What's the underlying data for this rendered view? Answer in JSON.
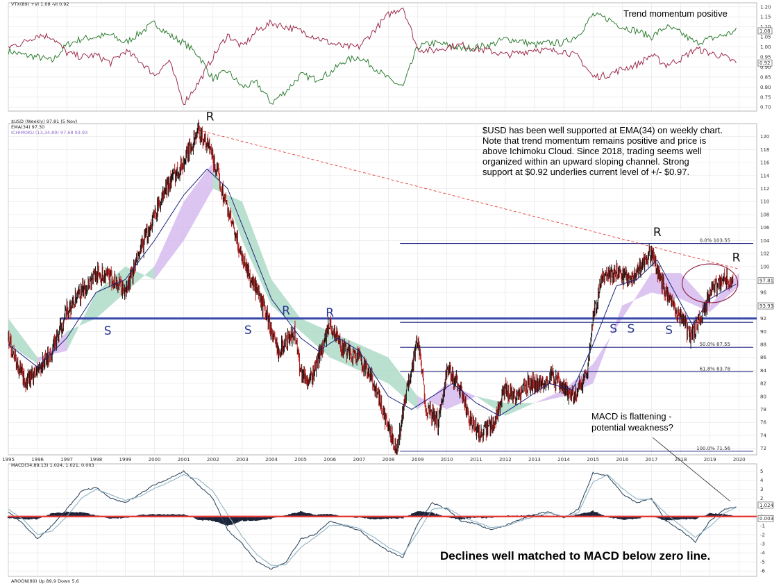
{
  "chart_data": [
    {
      "type": "line",
      "panel": "vortex",
      "legend": "VTX(89) +VI 1.08 -VI 0.92",
      "annotation": "Trend momentum positive",
      "ylim": [
        0.68,
        1.22
      ],
      "yticks": [
        "1.20",
        "1.15",
        "1.10",
        "1.05",
        "1.00",
        "0.95",
        "0.90",
        "0.85",
        "0.80",
        "0.75",
        "0.70"
      ],
      "last_labels": [
        "1.08",
        "0.92"
      ],
      "series": [
        {
          "name": "+VI",
          "color": "#2e7d32",
          "x": [
            1995.0,
            1995.5,
            1996.0,
            1996.5,
            1997.0,
            1997.5,
            1998.0,
            1998.5,
            1999.0,
            1999.5,
            2000.0,
            2000.5,
            2001.0,
            2001.5,
            2002.0,
            2002.5,
            2003.0,
            2003.5,
            2004.0,
            2004.5,
            2005.0,
            2005.5,
            2006.0,
            2006.5,
            2007.0,
            2007.5,
            2008.0,
            2008.5,
            2009.0,
            2009.5,
            2010.0,
            2010.5,
            2011.0,
            2011.5,
            2012.0,
            2012.5,
            2013.0,
            2013.5,
            2014.0,
            2014.5,
            2015.0,
            2015.5,
            2016.0,
            2016.5,
            2017.0,
            2017.5,
            2018.0,
            2018.5,
            2019.0,
            2019.5,
            2019.9
          ],
          "y": [
            0.98,
            0.96,
            0.95,
            0.93,
            1.01,
            1.04,
            1.05,
            1.06,
            1.02,
            1.07,
            1.12,
            1.06,
            1.02,
            0.96,
            0.84,
            0.88,
            0.8,
            0.82,
            0.72,
            0.78,
            0.86,
            0.84,
            0.87,
            0.93,
            0.95,
            0.9,
            0.84,
            0.8,
            1.0,
            1.02,
            1.01,
            0.99,
            1.0,
            1.01,
            1.04,
            1.03,
            1.01,
            1.02,
            1.02,
            1.06,
            1.16,
            1.14,
            1.1,
            1.08,
            1.05,
            1.1,
            1.07,
            1.02,
            1.04,
            1.06,
            1.08
          ]
        },
        {
          "name": "-VI",
          "color": "#9c2a4a",
          "x": [
            1995.0,
            1995.5,
            1996.0,
            1996.5,
            1997.0,
            1997.5,
            1998.0,
            1998.5,
            1999.0,
            1999.5,
            2000.0,
            2000.5,
            2001.0,
            2001.5,
            2002.0,
            2002.5,
            2003.0,
            2003.5,
            2004.0,
            2004.5,
            2005.0,
            2005.5,
            2006.0,
            2006.5,
            2007.0,
            2007.5,
            2008.0,
            2008.5,
            2009.0,
            2009.5,
            2010.0,
            2010.5,
            2011.0,
            2011.5,
            2012.0,
            2012.5,
            2013.0,
            2013.5,
            2014.0,
            2014.5,
            2015.0,
            2015.5,
            2016.0,
            2016.5,
            2017.0,
            2017.5,
            2018.0,
            2018.5,
            2019.0,
            2019.5,
            2019.9
          ],
          "y": [
            1.0,
            1.02,
            1.06,
            1.05,
            0.97,
            0.95,
            0.96,
            0.92,
            0.98,
            0.93,
            0.86,
            0.93,
            0.72,
            0.82,
            0.95,
            1.06,
            1.0,
            1.08,
            1.12,
            1.1,
            1.08,
            1.05,
            1.02,
            1.0,
            1.0,
            1.08,
            1.16,
            1.2,
            0.99,
            0.98,
            1.0,
            1.01,
            0.99,
            0.98,
            0.96,
            0.97,
            0.99,
            0.98,
            0.98,
            0.95,
            0.85,
            0.86,
            0.89,
            0.91,
            0.96,
            0.91,
            0.94,
            0.99,
            0.97,
            0.95,
            0.92
          ]
        }
      ]
    },
    {
      "type": "candlestick",
      "panel": "price",
      "legend": [
        "$USD (Weekly) 97.81 (5 Nov)",
        "EMA(34) 97.30",
        "ICHIMOKU (13,34,89) 97.68 93.93"
      ],
      "ylim": [
        71,
        122
      ],
      "yticks": [
        "120",
        "118",
        "116",
        "114",
        "112",
        "110",
        "108",
        "106",
        "104",
        "102",
        "100",
        "98",
        "96",
        "94",
        "92",
        "90",
        "88",
        "86",
        "84",
        "82",
        "80",
        "78",
        "76",
        "74",
        "72"
      ],
      "xticks": [
        "1995",
        "1996",
        "1997",
        "1998",
        "1999",
        "2000",
        "2001",
        "2002",
        "2003",
        "2004",
        "2005",
        "2006",
        "2007",
        "2008",
        "2009",
        "2010",
        "2011",
        "2012",
        "2013",
        "2014",
        "2015",
        "2016",
        "2017",
        "2018",
        "2019",
        "2020"
      ],
      "last_labels": [
        "97.81",
        "93.93"
      ],
      "price_path": {
        "x": [
          1995.0,
          1995.3,
          1995.6,
          1996.0,
          1996.5,
          1997.0,
          1997.5,
          1998.0,
          1998.6,
          1999.0,
          1999.5,
          2000.0,
          2000.5,
          2001.0,
          2001.5,
          2001.9,
          2002.3,
          2002.8,
          2003.3,
          2003.8,
          2004.2,
          2004.8,
          2005.0,
          2005.3,
          2005.7,
          2006.0,
          2006.5,
          2007.0,
          2007.5,
          2008.0,
          2008.3,
          2008.6,
          2009.0,
          2009.3,
          2009.7,
          2010.0,
          2010.4,
          2010.8,
          2011.2,
          2011.6,
          2012.0,
          2012.4,
          2012.8,
          2013.2,
          2013.6,
          2014.0,
          2014.4,
          2014.8,
          2015.0,
          2015.3,
          2015.8,
          2016.3,
          2016.8,
          2017.0,
          2017.4,
          2017.8,
          2018.1,
          2018.3,
          2018.7,
          2019.0,
          2019.4,
          2019.8
        ],
        "y": [
          89,
          85,
          82,
          84,
          87,
          93,
          96,
          99,
          98,
          96,
          102,
          108,
          113,
          116,
          121,
          118,
          112,
          104,
          98,
          93,
          87,
          90,
          84,
          82,
          87,
          91,
          87,
          86,
          82,
          75,
          72,
          80,
          89,
          78,
          76,
          84,
          82,
          76,
          74,
          76,
          81,
          80,
          82,
          82,
          83,
          81,
          80,
          84,
          92,
          98,
          99,
          98,
          101,
          102,
          97,
          93,
          92,
          89,
          92,
          96,
          98,
          97.8
        ]
      },
      "ema34": {
        "x": [
          1995.0,
          1996.0,
          1997.0,
          1998.0,
          1999.0,
          2000.0,
          2001.0,
          2001.8,
          2002.5,
          2003.3,
          2004.0,
          2005.0,
          2005.6,
          2006.3,
          2007.0,
          2008.0,
          2008.8,
          2009.5,
          2010.2,
          2011.0,
          2011.8,
          2012.5,
          2013.5,
          2014.3,
          2015.0,
          2015.8,
          2016.5,
          2017.2,
          2017.8,
          2018.4,
          2019.0,
          2019.9
        ],
        "y": [
          88,
          84.5,
          89,
          96,
          98,
          104,
          111,
          115,
          112,
          103,
          95,
          89,
          87,
          89,
          87,
          80,
          78,
          80,
          82,
          79,
          77,
          79,
          82,
          81,
          88,
          97,
          98,
          101,
          96,
          91,
          95,
          97.3
        ]
      },
      "cloud_a": {
        "x": [
          1995,
          1996,
          1997,
          1998,
          1999,
          2000,
          2001,
          2002,
          2003,
          2004,
          2005,
          2006,
          2007,
          2008,
          2009,
          2010,
          2011,
          2012,
          2013,
          2014,
          2015,
          2016,
          2017,
          2018,
          2019,
          2020
        ],
        "y": [
          92,
          86,
          87,
          96,
          100,
          98,
          104,
          112,
          110,
          98,
          92,
          90,
          88,
          86,
          80,
          78,
          80,
          79,
          79,
          80,
          82,
          94,
          96,
          95,
          93,
          97
        ]
      },
      "cloud_b": {
        "x": [
          1995,
          1996,
          1997,
          1998,
          1999,
          2000,
          2001,
          2002,
          2003,
          2004,
          2005,
          2006,
          2007,
          2008,
          2009,
          2010,
          2011,
          2012,
          2013,
          2014,
          2015,
          2016,
          2017,
          2018,
          2019,
          2020
        ],
        "y": [
          88,
          85,
          90,
          92,
          96,
          100,
          110,
          116,
          104,
          94,
          90,
          86,
          84,
          82,
          78,
          82,
          80,
          77,
          79,
          81,
          85,
          92,
          99,
          99,
          94,
          99
        ]
      },
      "fibonacci": [
        {
          "label": "0.0% 103.55",
          "value": 103.55
        },
        {
          "label": "",
          "value": 91.4
        },
        {
          "label": "50.0% 87.55",
          "value": 87.55
        },
        {
          "label": "61.8% 83.78",
          "value": 83.78
        },
        {
          "label": "100.0% 71.56",
          "value": 71.56
        }
      ],
      "support_level": 92.0,
      "trendline": {
        "x": [
          2001.5,
          2020.0
        ],
        "y": [
          121.0,
          99.6
        ]
      },
      "annotations": {
        "text": [
          "$USD has been well supported at EMA(34) on weekly chart.",
          "Note that trend momentum remains positive and price is",
          "above Ichimoku Cloud.  Since 2018, trading seems well",
          "organized within an upward sloping channel.  Strong",
          "support at $0.92 underlies current level of +/- $0.97."
        ],
        "macd_note": [
          "MACD is flattening -",
          "potential weakness?"
        ],
        "marks": [
          {
            "t": "R",
            "x": 2001.9,
            "y": 122.5
          },
          {
            "t": "R",
            "x": 2017.2,
            "y": 104.7
          },
          {
            "t": "R",
            "x": 2019.9,
            "y": 100.8
          },
          {
            "t": "R",
            "x": 2004.5,
            "y": 92.6
          },
          {
            "t": "R",
            "x": 2006.0,
            "y": 92.3
          },
          {
            "t": "S",
            "x": 1998.4,
            "y": 89.5
          },
          {
            "t": "S",
            "x": 2003.2,
            "y": 89.6
          },
          {
            "t": "S",
            "x": 2015.7,
            "y": 89.8
          },
          {
            "t": "S",
            "x": 2016.3,
            "y": 89.8
          },
          {
            "t": "S",
            "x": 2017.6,
            "y": 89.6
          }
        ]
      }
    },
    {
      "type": "line",
      "panel": "macd",
      "legend": "MACD(34,89,13) 1.024, 1.021, 0.003",
      "annotation": "Declines well matched to MACD below zero line.",
      "ylim": [
        -6.6,
        5.8
      ],
      "yticks": [
        "5",
        "4",
        "3",
        "2",
        "1",
        "0",
        "-1",
        "-2",
        "-3",
        "-4",
        "-5",
        "-6"
      ],
      "last_labels": [
        "1.024",
        "0.003"
      ],
      "macd": {
        "x": [
          1995.0,
          1995.5,
          1996.0,
          1996.5,
          1997.0,
          1997.5,
          1998.0,
          1998.5,
          1999.0,
          1999.5,
          2000.0,
          2000.5,
          2001.0,
          2001.5,
          2002.0,
          2002.5,
          2003.0,
          2003.5,
          2004.0,
          2004.5,
          2005.0,
          2005.5,
          2006.0,
          2006.5,
          2007.0,
          2007.5,
          2008.0,
          2008.5,
          2009.0,
          2009.5,
          2010.0,
          2010.5,
          2011.0,
          2011.5,
          2012.0,
          2012.5,
          2013.0,
          2013.5,
          2014.0,
          2014.5,
          2015.0,
          2015.5,
          2016.0,
          2016.5,
          2017.0,
          2017.5,
          2018.0,
          2018.5,
          2019.0,
          2019.5,
          2019.9
        ],
        "y": [
          0.5,
          -0.8,
          -2.5,
          -1.0,
          0.8,
          2.8,
          3.2,
          2.0,
          1.5,
          2.5,
          3.5,
          4.2,
          5.0,
          3.5,
          2.0,
          -1.5,
          -3.0,
          -5.0,
          -5.8,
          -5.0,
          -2.5,
          -2.0,
          -0.5,
          -1.0,
          -1.5,
          -2.8,
          -3.8,
          -4.5,
          -0.8,
          1.5,
          0.8,
          -0.5,
          -0.8,
          -1.5,
          -1.0,
          -0.3,
          0.2,
          0.5,
          -0.2,
          0.8,
          4.8,
          4.5,
          2.5,
          1.5,
          2.0,
          -0.5,
          -1.5,
          -2.8,
          -0.5,
          0.8,
          1.0
        ]
      },
      "signal": {
        "x": [
          1995.0,
          1995.5,
          1996.0,
          1996.5,
          1997.0,
          1997.5,
          1998.0,
          1998.5,
          1999.0,
          1999.5,
          2000.0,
          2000.5,
          2001.0,
          2001.5,
          2002.0,
          2002.5,
          2003.0,
          2003.5,
          2004.0,
          2004.5,
          2005.0,
          2005.5,
          2006.0,
          2006.5,
          2007.0,
          2007.5,
          2008.0,
          2008.5,
          2009.0,
          2009.5,
          2010.0,
          2010.5,
          2011.0,
          2011.5,
          2012.0,
          2012.5,
          2013.0,
          2013.5,
          2014.0,
          2014.5,
          2015.0,
          2015.5,
          2016.0,
          2016.5,
          2017.0,
          2017.5,
          2018.0,
          2018.5,
          2019.0,
          2019.5,
          2019.9
        ],
        "y": [
          0.8,
          -0.3,
          -2.0,
          -1.6,
          0.0,
          2.0,
          3.0,
          2.4,
          1.8,
          2.2,
          3.1,
          3.8,
          4.6,
          4.1,
          2.8,
          0.2,
          -2.2,
          -4.2,
          -5.4,
          -5.3,
          -3.4,
          -2.3,
          -1.0,
          -0.9,
          -1.3,
          -2.3,
          -3.4,
          -4.2,
          -1.8,
          0.8,
          1.0,
          0.0,
          -0.6,
          -1.2,
          -1.1,
          -0.5,
          0.0,
          0.4,
          0.0,
          0.4,
          3.8,
          4.6,
          3.1,
          1.9,
          1.9,
          0.3,
          -1.0,
          -2.3,
          -1.1,
          0.4,
          1.0
        ]
      }
    }
  ],
  "bottom_legend": "AROON(89) Up 89.9 Down 5.6"
}
